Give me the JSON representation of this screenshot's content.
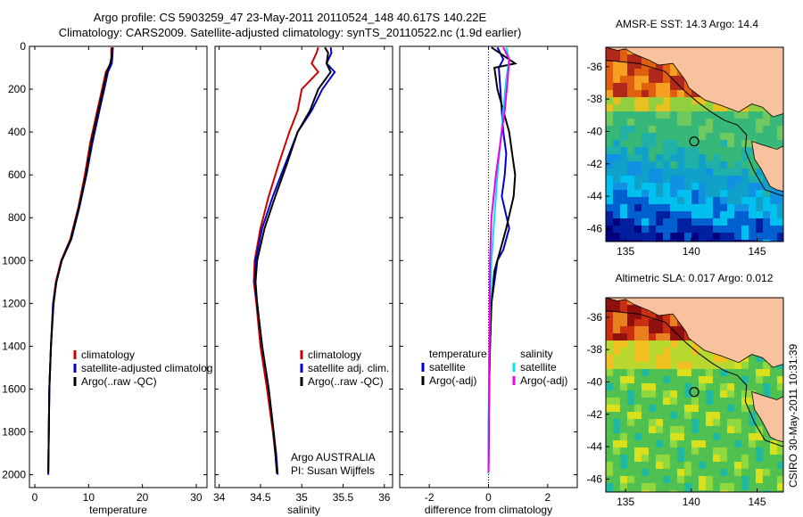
{
  "header": {
    "title_line1": "Argo profile: CS 5903259_47 23-May-2011 20110524_148 40.617S 140.22E",
    "title_line2": "Climatology: CARS2009. Satellite-adjusted climatology: synTS_20110522.nc (1.9d earlier)"
  },
  "colors": {
    "climatology": "#cc0000",
    "satellite": "#0000cc",
    "argo": "#000000",
    "sal_satellite": "#00e5ee",
    "sal_argo": "#ee00ee",
    "land": "#f9c29e"
  },
  "chart_data": [
    {
      "type": "line",
      "id": "temperature",
      "xlabel": "temperature",
      "ylabel": "",
      "xlim": [
        -1,
        32
      ],
      "ylim": [
        2060,
        0
      ],
      "ydir": "reverse",
      "xticks": [
        0,
        10,
        20,
        30
      ],
      "yticks": [
        0,
        200,
        400,
        600,
        800,
        1000,
        1200,
        1400,
        1600,
        1800,
        2000
      ],
      "ytick_labels": [
        "0",
        "200",
        "400",
        "600",
        "800",
        "1000",
        "1200",
        "1400",
        "1600",
        "1800",
        "2000"
      ],
      "legend": [
        "climatology",
        "satellite-adjusted climatolog",
        "Argo(..raw -QC)"
      ],
      "legend_position": "lower-right",
      "series": [
        {
          "name": "climatology",
          "color_key": "climatology",
          "x": [
            14.2,
            14.2,
            14.1,
            13.2,
            12.5,
            11.6,
            10.3,
            9.3,
            8.1,
            6.6,
            4.9,
            3.9,
            3.4,
            3.0,
            2.7,
            2.6,
            2.55,
            2.5
          ],
          "y": [
            5,
            50,
            80,
            120,
            200,
            300,
            450,
            600,
            750,
            900,
            1000,
            1100,
            1200,
            1400,
            1600,
            1800,
            1900,
            1980
          ]
        },
        {
          "name": "satellite-adjusted climatolog",
          "color_key": "satellite",
          "x": [
            14.5,
            14.4,
            14.3,
            13.6,
            12.9,
            12.0,
            10.7,
            9.6,
            8.3,
            6.8,
            5.0,
            4.0,
            3.4,
            3.0,
            2.7,
            2.6,
            2.55,
            2.5
          ],
          "y": [
            5,
            50,
            80,
            120,
            200,
            300,
            450,
            600,
            750,
            900,
            1000,
            1100,
            1200,
            1400,
            1600,
            1800,
            1900,
            2000
          ]
        },
        {
          "name": "Argo(..raw -QC)",
          "color_key": "argo",
          "x": [
            14.4,
            14.3,
            14.0,
            13.4,
            12.7,
            11.8,
            10.5,
            9.5,
            8.2,
            6.7,
            5.0,
            4.0,
            3.5,
            3.0,
            2.7,
            2.6,
            2.55,
            2.5
          ],
          "y": [
            5,
            50,
            80,
            120,
            200,
            300,
            450,
            600,
            750,
            900,
            1000,
            1100,
            1200,
            1400,
            1600,
            1800,
            1900,
            1990
          ]
        }
      ]
    },
    {
      "type": "line",
      "id": "salinity",
      "xlabel": "salinity",
      "ylabel": "",
      "xlim": [
        33.95,
        36.1
      ],
      "ylim": [
        2060,
        0
      ],
      "ydir": "reverse",
      "xticks": [
        34,
        34.5,
        35,
        35.5,
        36
      ],
      "xtick_labels": [
        "34",
        "34.5",
        "35",
        "35.5",
        "36"
      ],
      "legend": [
        "climatology",
        "satellite adj. clim.",
        "Argo(..raw -QC)"
      ],
      "legend_position": "lower-right",
      "annotation": [
        "Argo AUSTRALIA",
        "PI: Susan Wijffels"
      ],
      "series": [
        {
          "name": "climatology",
          "color_key": "climatology",
          "x": [
            35.2,
            35.18,
            35.12,
            35.2,
            35.0,
            34.95,
            34.85,
            34.72,
            34.6,
            34.5,
            34.43,
            34.42,
            34.45,
            34.5,
            34.58,
            34.65,
            34.68,
            34.7
          ],
          "y": [
            5,
            30,
            80,
            120,
            200,
            300,
            400,
            550,
            700,
            850,
            1000,
            1100,
            1200,
            1400,
            1600,
            1800,
            1900,
            1990
          ]
        },
        {
          "name": "satellite adj. clim.",
          "color_key": "satellite",
          "x": [
            35.35,
            35.36,
            35.3,
            35.4,
            35.25,
            35.12,
            34.95,
            34.8,
            34.65,
            34.52,
            34.44,
            34.43,
            34.46,
            34.52,
            34.6,
            34.66,
            34.69,
            34.71
          ],
          "y": [
            5,
            30,
            80,
            120,
            200,
            300,
            400,
            550,
            700,
            850,
            1000,
            1100,
            1200,
            1400,
            1600,
            1800,
            1900,
            2000
          ]
        },
        {
          "name": "Argo(..raw -QC)",
          "color_key": "argo",
          "x": [
            35.28,
            35.32,
            35.3,
            35.35,
            35.2,
            35.1,
            34.95,
            34.82,
            34.68,
            34.55,
            34.46,
            34.44,
            34.46,
            34.52,
            34.6,
            34.66,
            34.68,
            34.7
          ],
          "y": [
            5,
            30,
            80,
            120,
            200,
            300,
            400,
            550,
            700,
            850,
            1000,
            1100,
            1200,
            1400,
            1600,
            1800,
            1900,
            1995
          ]
        }
      ]
    },
    {
      "type": "line",
      "id": "difference",
      "xlabel": "difference from climatology",
      "ylabel": "",
      "xlim": [
        -3,
        3
      ],
      "ylim": [
        2060,
        0
      ],
      "ydir": "reverse",
      "xticks": [
        -2,
        0,
        2
      ],
      "legend_temperature": [
        "temperature",
        "satellite",
        "Argo(-adj)"
      ],
      "legend_salinity": [
        "salinity",
        "satellite",
        "Argo(-adj)"
      ],
      "legend_position": "lower",
      "series": [
        {
          "name": "temperature satellite",
          "color_key": "satellite",
          "x": [
            0.3,
            0.5,
            0.35,
            0.4,
            0.45,
            0.5,
            0.6,
            0.55,
            0.45,
            0.7,
            0.5,
            0.3,
            0.2,
            0.1,
            0.05,
            0.02,
            0.0
          ],
          "y": [
            5,
            60,
            100,
            200,
            300,
            400,
            500,
            600,
            700,
            850,
            950,
            1000,
            1100,
            1200,
            1400,
            1600,
            1990
          ]
        },
        {
          "name": "temperature Argo(-adj)",
          "color_key": "argo",
          "x": [
            0.1,
            0.9,
            0.2,
            0.3,
            0.5,
            0.7,
            0.8,
            0.9,
            0.85,
            0.6,
            0.4,
            0.2,
            0.1,
            0.05,
            0.02,
            0.0
          ],
          "y": [
            5,
            80,
            100,
            200,
            300,
            400,
            500,
            600,
            700,
            850,
            950,
            1050,
            1200,
            1400,
            1600,
            1990
          ]
        },
        {
          "name": "salinity satellite",
          "color_key": "sal_satellite",
          "x": [
            0.6,
            0.7,
            0.6,
            0.5,
            0.4,
            0.3,
            0.2,
            0.1,
            0.05,
            0.02,
            0.0,
            0.0
          ],
          "y": [
            5,
            60,
            150,
            300,
            450,
            600,
            800,
            1000,
            1200,
            1500,
            1800,
            1995
          ]
        },
        {
          "name": "salinity Argo(-adj)",
          "color_key": "sal_argo",
          "x": [
            0.5,
            0.7,
            0.65,
            0.55,
            0.4,
            0.25,
            0.1,
            0.05,
            0.0
          ],
          "y": [
            5,
            60,
            150,
            300,
            450,
            600,
            800,
            1000,
            1990
          ]
        }
      ]
    },
    {
      "type": "heatmap",
      "id": "sst_map",
      "title": "AMSR-E SST: 14.3 Argo: 14.4",
      "xlim": [
        133.5,
        147
      ],
      "ylim": [
        -46.8,
        -34.8
      ],
      "xticks": [
        135,
        140,
        145
      ],
      "yticks": [
        -36,
        -38,
        -40,
        -42,
        -44,
        -46
      ],
      "argo_position": {
        "lon": 140.22,
        "lat": -40.617
      }
    },
    {
      "type": "heatmap",
      "id": "sla_map",
      "title": "Altimetric SLA: 0.017 Argo: 0.012",
      "xlim": [
        133.5,
        147
      ],
      "ylim": [
        -46.8,
        -34.8
      ],
      "xticks": [
        135,
        140,
        145
      ],
      "yticks": [
        -36,
        -38,
        -40,
        -42,
        -44,
        -46
      ],
      "argo_position": {
        "lon": 140.22,
        "lat": -40.617
      }
    }
  ],
  "footer": {
    "stamp": "CSIRO 30-May-2011 10:31:39"
  }
}
